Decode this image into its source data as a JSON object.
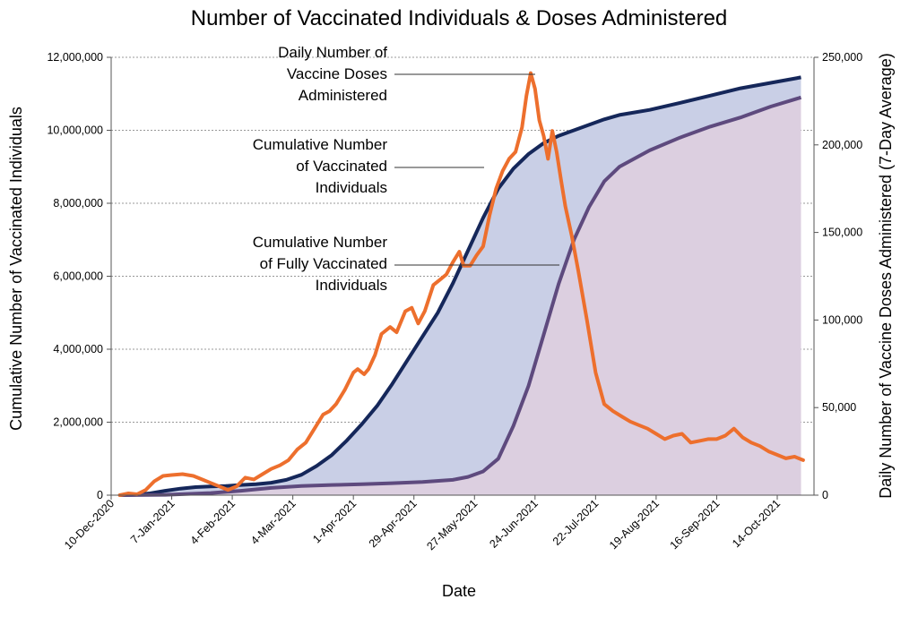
{
  "chart_data": {
    "type": "area",
    "title": "Number of Vaccinated Individuals & Doses Administered",
    "xlabel": "Date",
    "ylabel_left": "Cumulative Number of Vaccinated Individuals",
    "ylabel_right": "Daily Number of Vaccine Doses Administered (7-Day Average)",
    "ylim_left": [
      0,
      12000000
    ],
    "ylim_right": [
      0,
      250000
    ],
    "xlim": [
      "2020-12-10",
      "2021-10-31"
    ],
    "grid": "horizontal dashed",
    "x_tick_dates": [
      "2020-12-10",
      "2021-01-07",
      "2021-02-04",
      "2021-03-04",
      "2021-04-01",
      "2021-04-29",
      "2021-05-27",
      "2021-06-24",
      "2021-07-22",
      "2021-08-19",
      "2021-09-16",
      "2021-10-14"
    ],
    "x_tick_labels": [
      "10-Dec-2020",
      "7-Jan-2021",
      "4-Feb-2021",
      "4-Mar-2021",
      "1-Apr-2021",
      "29-Apr-2021",
      "27-May-2021",
      "24-Jun-2021",
      "22-Jul-2021",
      "19-Aug-2021",
      "16-Sep-2021",
      "14-Oct-2021"
    ],
    "y_left_ticks": [
      "0",
      "2,000,000",
      "4,000,000",
      "6,000,000",
      "8,000,000",
      "10,000,000",
      "12,000,000"
    ],
    "y_right_ticks": [
      "0",
      "50,000",
      "100,000",
      "150,000",
      "200,000",
      "250,000"
    ],
    "y_left_tick_values": [
      0,
      2000000,
      4000000,
      6000000,
      8000000,
      10000000,
      12000000
    ],
    "y_right_tick_values": [
      0,
      50000,
      100000,
      150000,
      200000,
      250000
    ],
    "colors": {
      "vaccinated_line": "#15275a",
      "vaccinated_fill": "#c9cfe6",
      "fully_line": "#5e4a7e",
      "fully_fill": "#dccfe0",
      "doses_line": "#ed6f2d"
    },
    "series": [
      {
        "name": "Cumulative Number of Vaccinated Individuals",
        "axis": "left",
        "x": [
          "2020-12-14",
          "2020-12-21",
          "2020-12-28",
          "2021-01-04",
          "2021-01-11",
          "2021-01-18",
          "2021-01-25",
          "2021-02-01",
          "2021-02-08",
          "2021-02-15",
          "2021-02-22",
          "2021-03-01",
          "2021-03-08",
          "2021-03-15",
          "2021-03-22",
          "2021-03-29",
          "2021-04-05",
          "2021-04-12",
          "2021-04-19",
          "2021-04-26",
          "2021-05-03",
          "2021-05-10",
          "2021-05-17",
          "2021-05-24",
          "2021-05-31",
          "2021-06-07",
          "2021-06-14",
          "2021-06-21",
          "2021-06-28",
          "2021-07-05",
          "2021-07-12",
          "2021-07-19",
          "2021-07-26",
          "2021-08-02",
          "2021-08-16",
          "2021-08-30",
          "2021-09-13",
          "2021-09-27",
          "2021-10-11",
          "2021-10-25"
        ],
        "values": [
          0,
          10000,
          50000,
          120000,
          180000,
          220000,
          240000,
          250000,
          280000,
          300000,
          340000,
          420000,
          560000,
          800000,
          1100000,
          1500000,
          1950000,
          2450000,
          3050000,
          3700000,
          4350000,
          5000000,
          5800000,
          6700000,
          7600000,
          8400000,
          8950000,
          9350000,
          9650000,
          9850000,
          10000000,
          10150000,
          10300000,
          10420000,
          10560000,
          10750000,
          10950000,
          11150000,
          11300000,
          11450000
        ]
      },
      {
        "name": "Cumulative Number of Fully Vaccinated Individuals",
        "axis": "left",
        "x": [
          "2020-12-14",
          "2021-01-04",
          "2021-01-25",
          "2021-02-08",
          "2021-02-22",
          "2021-03-08",
          "2021-03-22",
          "2021-04-05",
          "2021-04-19",
          "2021-05-03",
          "2021-05-17",
          "2021-05-24",
          "2021-05-31",
          "2021-06-07",
          "2021-06-14",
          "2021-06-21",
          "2021-06-28",
          "2021-07-05",
          "2021-07-12",
          "2021-07-19",
          "2021-07-26",
          "2021-08-02",
          "2021-08-16",
          "2021-08-30",
          "2021-09-13",
          "2021-09-27",
          "2021-10-11",
          "2021-10-25"
        ],
        "values": [
          0,
          10000,
          60000,
          120000,
          200000,
          250000,
          280000,
          300000,
          330000,
          360000,
          420000,
          500000,
          650000,
          1000000,
          1900000,
          3000000,
          4400000,
          5800000,
          7000000,
          7900000,
          8600000,
          9000000,
          9450000,
          9800000,
          10100000,
          10350000,
          10650000,
          10900000
        ]
      },
      {
        "name": "Daily Number of Vaccine Doses Administered",
        "axis": "right",
        "x": [
          "2020-12-14",
          "2020-12-18",
          "2020-12-22",
          "2020-12-26",
          "2020-12-30",
          "2021-01-03",
          "2021-01-07",
          "2021-01-12",
          "2021-01-17",
          "2021-01-21",
          "2021-01-25",
          "2021-01-29",
          "2021-02-02",
          "2021-02-06",
          "2021-02-10",
          "2021-02-14",
          "2021-02-18",
          "2021-02-22",
          "2021-02-26",
          "2021-03-02",
          "2021-03-06",
          "2021-03-10",
          "2021-03-14",
          "2021-03-18",
          "2021-03-21",
          "2021-03-24",
          "2021-03-28",
          "2021-04-01",
          "2021-04-03",
          "2021-04-06",
          "2021-04-08",
          "2021-04-11",
          "2021-04-14",
          "2021-04-18",
          "2021-04-21",
          "2021-04-25",
          "2021-04-28",
          "2021-05-01",
          "2021-05-04",
          "2021-05-08",
          "2021-05-11",
          "2021-05-14",
          "2021-05-17",
          "2021-05-20",
          "2021-05-22",
          "2021-05-25",
          "2021-05-28",
          "2021-05-31",
          "2021-06-03",
          "2021-06-06",
          "2021-06-09",
          "2021-06-12",
          "2021-06-15",
          "2021-06-18",
          "2021-06-20",
          "2021-06-22",
          "2021-06-24",
          "2021-06-26",
          "2021-06-28",
          "2021-06-30",
          "2021-07-02",
          "2021-07-04",
          "2021-07-06",
          "2021-07-08",
          "2021-07-11",
          "2021-07-14",
          "2021-07-18",
          "2021-07-22",
          "2021-07-26",
          "2021-07-30",
          "2021-08-03",
          "2021-08-07",
          "2021-08-11",
          "2021-08-15",
          "2021-08-19",
          "2021-08-23",
          "2021-08-27",
          "2021-08-31",
          "2021-09-04",
          "2021-09-08",
          "2021-09-12",
          "2021-09-16",
          "2021-09-20",
          "2021-09-24",
          "2021-09-28",
          "2021-10-02",
          "2021-10-06",
          "2021-10-10",
          "2021-10-14",
          "2021-10-18",
          "2021-10-22",
          "2021-10-26"
        ],
        "values": [
          0,
          1000,
          500,
          3000,
          8000,
          11000,
          11500,
          12000,
          11000,
          9000,
          7000,
          5000,
          3000,
          5000,
          10000,
          9000,
          12000,
          15000,
          17000,
          20000,
          26000,
          30000,
          38000,
          46000,
          48000,
          52000,
          60000,
          70000,
          72000,
          69000,
          72000,
          80000,
          92000,
          96000,
          93000,
          105000,
          107000,
          98000,
          105000,
          120000,
          123000,
          126000,
          133000,
          139000,
          131000,
          131000,
          137000,
          142000,
          160000,
          175000,
          185000,
          192000,
          196000,
          210000,
          228000,
          241000,
          232000,
          214000,
          205000,
          192000,
          208000,
          196000,
          180000,
          165000,
          148000,
          128000,
          100000,
          70000,
          52000,
          48000,
          45000,
          42000,
          40000,
          38000,
          35000,
          32000,
          34000,
          35000,
          30000,
          31000,
          32000,
          32000,
          34000,
          38000,
          33000,
          30000,
          28000,
          25000,
          23000,
          21000,
          22000,
          20000
        ]
      }
    ],
    "annotations": [
      {
        "text_lines": [
          "Daily Number of",
          "Vaccine Doses",
          "Administered"
        ],
        "series": "Daily Number of Vaccine Doses Administered"
      },
      {
        "text_lines": [
          "Cumulative Number",
          "of Vaccinated",
          "Individuals"
        ],
        "series": "Cumulative Number of Vaccinated Individuals"
      },
      {
        "text_lines": [
          "Cumulative Number",
          "of Fully Vaccinated",
          "Individuals"
        ],
        "series": "Cumulative Number of Fully Vaccinated Individuals"
      }
    ]
  }
}
